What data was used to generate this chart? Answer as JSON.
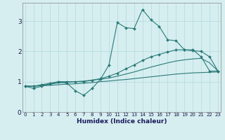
{
  "xlabel": "Humidex (Indice chaleur)",
  "x": [
    0,
    1,
    2,
    3,
    4,
    5,
    6,
    7,
    8,
    9,
    10,
    11,
    12,
    13,
    14,
    15,
    16,
    17,
    18,
    19,
    20,
    21,
    22,
    23
  ],
  "line1": [
    0.85,
    0.78,
    0.85,
    0.92,
    1.0,
    0.95,
    0.7,
    0.55,
    0.78,
    1.08,
    1.55,
    2.95,
    2.78,
    2.75,
    3.38,
    3.04,
    2.82,
    2.38,
    2.35,
    2.05,
    2.05,
    1.82,
    1.35,
    1.35
  ],
  "line2": [
    0.85,
    0.85,
    0.9,
    0.95,
    1.0,
    1.0,
    1.0,
    1.0,
    1.05,
    1.1,
    1.18,
    1.28,
    1.42,
    1.55,
    1.7,
    1.82,
    1.9,
    1.98,
    2.05,
    2.05,
    2.02,
    2.0,
    1.82,
    1.35
  ],
  "line3": [
    0.85,
    0.85,
    0.88,
    0.92,
    0.96,
    0.98,
    1.0,
    1.02,
    1.05,
    1.08,
    1.12,
    1.18,
    1.25,
    1.32,
    1.4,
    1.48,
    1.55,
    1.62,
    1.68,
    1.72,
    1.75,
    1.77,
    1.62,
    1.35
  ],
  "line4": [
    0.85,
    0.85,
    0.87,
    0.88,
    0.9,
    0.92,
    0.93,
    0.95,
    0.97,
    1.0,
    1.02,
    1.05,
    1.07,
    1.1,
    1.13,
    1.16,
    1.19,
    1.22,
    1.25,
    1.27,
    1.29,
    1.3,
    1.31,
    1.32
  ],
  "line_color": "#2a7a78",
  "bg_color": "#d6eef0",
  "grid_color": "#b8dde0",
  "ylim": [
    0,
    3.6
  ],
  "yticks": [
    0,
    1,
    2,
    3
  ],
  "xticks": [
    0,
    1,
    2,
    3,
    4,
    5,
    6,
    7,
    8,
    9,
    10,
    11,
    12,
    13,
    14,
    15,
    16,
    17,
    18,
    19,
    20,
    21,
    22,
    23
  ]
}
